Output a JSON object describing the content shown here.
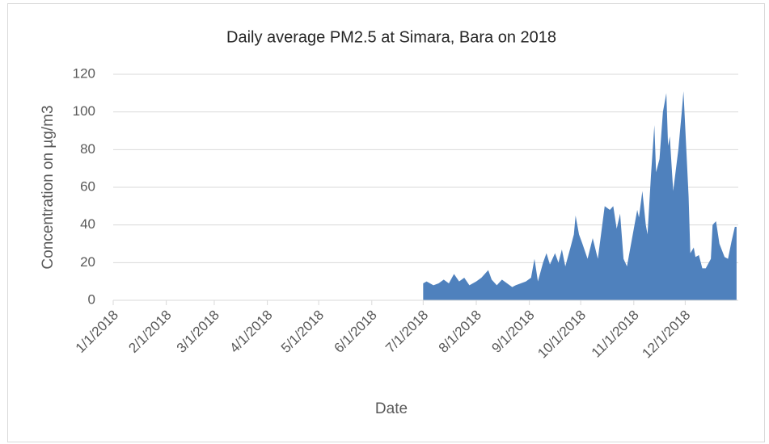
{
  "chart_data": {
    "type": "area",
    "title": "Daily average PM2.5 at Simara, Bara on 2018",
    "x_label": "Date",
    "y_label": "Concentration on µg/m3",
    "color": "#4f81bd",
    "grid": true,
    "ylim": [
      0,
      120
    ],
    "yticks": [
      0,
      20,
      40,
      60,
      80,
      100,
      120
    ],
    "xlim": [
      "1/1/2018",
      "1/1/2019"
    ],
    "xticks": [
      "1/1/2018",
      "2/1/2018",
      "3/1/2018",
      "4/1/2018",
      "5/1/2018",
      "6/1/2018",
      "7/1/2018",
      "8/1/2018",
      "9/1/2018",
      "10/1/2018",
      "11/1/2018",
      "12/1/2018"
    ],
    "x": [
      "7/1/2018",
      "7/3/2018",
      "7/7/2018",
      "7/10/2018",
      "7/13/2018",
      "7/16/2018",
      "7/19/2018",
      "7/22/2018",
      "7/25/2018",
      "7/28/2018",
      "8/1/2018",
      "8/4/2018",
      "8/8/2018",
      "8/10/2018",
      "8/13/2018",
      "8/16/2018",
      "8/19/2018",
      "8/22/2018",
      "8/24/2018",
      "8/27/2018",
      "8/30/2018",
      "9/2/2018",
      "9/4/2018",
      "9/6/2018",
      "9/9/2018",
      "9/11/2018",
      "9/13/2018",
      "9/16/2018",
      "9/18/2018",
      "9/20/2018",
      "9/22/2018",
      "9/25/2018",
      "9/27/2018",
      "9/28/2018",
      "9/30/2018",
      "10/2/2018",
      "10/5/2018",
      "10/8/2018",
      "10/11/2018",
      "10/13/2018",
      "10/15/2018",
      "10/18/2018",
      "10/20/2018",
      "10/22/2018",
      "10/24/2018",
      "10/26/2018",
      "10/28/2018",
      "10/30/2018",
      "11/3/2018",
      "11/4/2018",
      "11/6/2018",
      "11/8/2018",
      "11/9/2018",
      "11/11/2018",
      "11/13/2018",
      "11/14/2018",
      "11/16/2018",
      "11/18/2018",
      "11/20/2018",
      "11/21/2018",
      "11/22/2018",
      "11/24/2018",
      "11/27/2018",
      "11/29/2018",
      "11/30/2018",
      "12/3/2018",
      "12/4/2018",
      "12/6/2018",
      "12/7/2018",
      "12/9/2018",
      "12/11/2018",
      "12/13/2018",
      "12/16/2018",
      "12/17/2018",
      "12/19/2018",
      "12/21/2018",
      "12/24/2018",
      "12/26/2018",
      "12/28/2018",
      "12/30/2018",
      "12/31/2018"
    ],
    "values": [
      9,
      10,
      8,
      9,
      11,
      9,
      14,
      10,
      12,
      8,
      10,
      12,
      16,
      11,
      8,
      11,
      9,
      7,
      8,
      9,
      10,
      12,
      22,
      10,
      20,
      25,
      19,
      25,
      20,
      27,
      18,
      28,
      35,
      45,
      35,
      30,
      22,
      33,
      22,
      36,
      50,
      48,
      50,
      38,
      46,
      22,
      18,
      28,
      48,
      44,
      58,
      40,
      35,
      66,
      93,
      68,
      75,
      100,
      110,
      82,
      87,
      58,
      80,
      100,
      111,
      55,
      25,
      28,
      23,
      24,
      17,
      17,
      22,
      40,
      42,
      30,
      23,
      22,
      31,
      39,
      39
    ]
  }
}
